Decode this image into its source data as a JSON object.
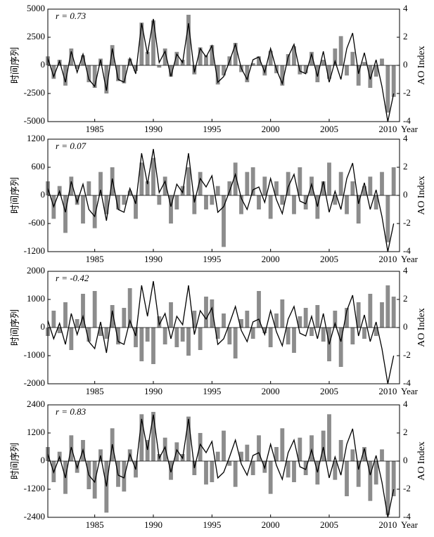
{
  "chart_data": [
    {
      "type": "bar",
      "annotation": "r = 0.73",
      "ylabel": "时间序列",
      "y2label": "AO Index",
      "xlabel": "Year",
      "xlim": [
        1981,
        2011
      ],
      "xticks": [
        1985,
        1990,
        1995,
        2000,
        2005,
        2010
      ],
      "ylim": [
        -5000,
        5000
      ],
      "yticks": [
        -5000,
        -2500,
        0,
        2500,
        5000
      ],
      "y2lim": [
        -4,
        4
      ],
      "y2ticks": [
        -4,
        -2,
        0,
        2,
        4
      ],
      "x": [
        1981,
        1981.5,
        1982,
        1982.5,
        1983,
        1983.5,
        1984,
        1984.5,
        1985,
        1985.5,
        1986,
        1986.5,
        1987,
        1987.5,
        1988,
        1988.5,
        1989,
        1989.5,
        1990,
        1990.5,
        1991,
        1991.5,
        1992,
        1992.5,
        1993,
        1993.5,
        1994,
        1994.5,
        1995,
        1995.5,
        1996,
        1996.5,
        1997,
        1997.5,
        1998,
        1998.5,
        1999,
        1999.5,
        2000,
        2000.5,
        2001,
        2001.5,
        2002,
        2002.5,
        2003,
        2003.5,
        2004,
        2004.5,
        2005,
        2005.5,
        2006,
        2006.5,
        2007,
        2007.5,
        2008,
        2008.5,
        2009,
        2009.5,
        2010,
        2010.5
      ],
      "series": [
        {
          "color": "#8c8c8c",
          "values": [
            800,
            -1200,
            500,
            -1800,
            1500,
            -300,
            900,
            -1500,
            -2000,
            600,
            -2500,
            1800,
            -1400,
            -1600,
            600,
            -500,
            3800,
            1200,
            4000,
            -200,
            1500,
            -1000,
            1200,
            500,
            4500,
            -800,
            1600,
            900,
            1800,
            -1700,
            -900,
            800,
            2000,
            -600,
            -1500,
            200,
            800,
            -900,
            1300,
            -700,
            -1800,
            1000,
            1700,
            -800,
            -700,
            1200,
            -1500,
            500,
            -1200,
            1500,
            2600,
            -900,
            1200,
            -1800,
            300,
            -2000,
            -1000,
            600,
            -4200,
            -2800
          ]
        },
        {
          "color": "#000000",
          "axis": "y2",
          "values": [
            0.5,
            -0.8,
            0.3,
            -1.2,
            1.0,
            -0.5,
            0.8,
            -1.0,
            -1.5,
            0.4,
            -1.8,
            1.2,
            -1.0,
            -1.2,
            0.5,
            -0.6,
            3.0,
            0.8,
            3.3,
            0.2,
            1.0,
            -0.8,
            0.8,
            0.2,
            3.0,
            -0.5,
            1.2,
            0.6,
            1.4,
            -1.2,
            -0.8,
            0.3,
            1.5,
            -0.2,
            -1.0,
            0.4,
            0.6,
            -0.5,
            1.2,
            -0.3,
            -1.3,
            0.6,
            1.5,
            -0.4,
            -0.6,
            0.8,
            -0.8,
            1.0,
            -1.2,
            0.3,
            -1.0,
            1.2,
            2.3,
            -0.6,
            0.9,
            -1.0,
            0.4,
            -1.5,
            -4.0,
            -2.0
          ]
        }
      ]
    },
    {
      "type": "bar",
      "annotation": "r = 0.07",
      "ylabel": "时间序列",
      "y2label": "AO Index",
      "xlabel": "Year",
      "xlim": [
        1981,
        2011
      ],
      "xticks": [
        1985,
        1990,
        1995,
        2000,
        2005,
        2010
      ],
      "ylim": [
        -1200,
        1200
      ],
      "yticks": [
        -1200,
        -600,
        0,
        600,
        1200
      ],
      "y2lim": [
        -4,
        4
      ],
      "y2ticks": [
        -4,
        -2,
        0,
        2,
        4
      ],
      "x": [
        1981,
        1981.5,
        1982,
        1982.5,
        1983,
        1983.5,
        1984,
        1984.5,
        1985,
        1985.5,
        1986,
        1986.5,
        1987,
        1987.5,
        1988,
        1988.5,
        1989,
        1989.5,
        1990,
        1990.5,
        1991,
        1991.5,
        1992,
        1992.5,
        1993,
        1993.5,
        1994,
        1994.5,
        1995,
        1995.5,
        1996,
        1996.5,
        1997,
        1997.5,
        1998,
        1998.5,
        1999,
        1999.5,
        2000,
        2000.5,
        2001,
        2001.5,
        2002,
        2002.5,
        2003,
        2003.5,
        2004,
        2004.5,
        2005,
        2005.5,
        2006,
        2006.5,
        2007,
        2007.5,
        2008,
        2008.5,
        2009,
        2009.5,
        2010,
        2010.5
      ],
      "series": [
        {
          "color": "#8c8c8c",
          "values": [
            300,
            -500,
            200,
            -800,
            400,
            -200,
            -600,
            300,
            -700,
            500,
            -400,
            600,
            -300,
            -200,
            100,
            -500,
            700,
            300,
            800,
            -200,
            400,
            -600,
            -300,
            200,
            600,
            -400,
            500,
            -300,
            -200,
            200,
            -1100,
            300,
            700,
            -400,
            500,
            600,
            -300,
            400,
            -500,
            300,
            -200,
            500,
            -400,
            600,
            -300,
            400,
            -500,
            300,
            700,
            -200,
            500,
            -400,
            300,
            -600,
            200,
            400,
            -300,
            500,
            -1000,
            600
          ]
        },
        {
          "color": "#000000",
          "axis": "y2",
          "values": [
            0.5,
            -0.8,
            0.3,
            -1.2,
            1.0,
            -0.5,
            0.8,
            -1.0,
            -1.5,
            0.4,
            -1.8,
            1.2,
            -1.0,
            -1.2,
            0.5,
            -0.6,
            3.0,
            0.8,
            3.3,
            0.2,
            1.0,
            -0.8,
            0.8,
            0.2,
            3.0,
            -0.5,
            1.2,
            0.6,
            1.4,
            -1.2,
            -0.8,
            0.3,
            1.5,
            -0.2,
            -1.0,
            0.4,
            0.6,
            -0.5,
            1.2,
            -0.3,
            -1.3,
            0.6,
            1.5,
            -0.4,
            -0.6,
            0.8,
            -0.8,
            1.0,
            -1.2,
            0.3,
            -1.0,
            1.2,
            2.3,
            -0.6,
            0.9,
            -1.0,
            0.4,
            -1.5,
            -4.0,
            -2.0
          ]
        }
      ]
    },
    {
      "type": "bar",
      "annotation": "r = -0.42",
      "ylabel": "时间序列",
      "y2label": "AO Index",
      "xlabel": "Year",
      "xlim": [
        1981,
        2011
      ],
      "xticks": [
        1985,
        1990,
        1995,
        2000,
        2005,
        2010
      ],
      "ylim": [
        -2000,
        2000
      ],
      "yticks": [
        -2000,
        -1000,
        0,
        1000,
        2000
      ],
      "y2lim": [
        -4,
        4
      ],
      "y2ticks": [
        -4,
        -2,
        0,
        2,
        4
      ],
      "x": [
        1981,
        1981.5,
        1982,
        1982.5,
        1983,
        1983.5,
        1984,
        1984.5,
        1985,
        1985.5,
        1986,
        1986.5,
        1987,
        1987.5,
        1988,
        1988.5,
        1989,
        1989.5,
        1990,
        1990.5,
        1991,
        1991.5,
        1992,
        1992.5,
        1993,
        1993.5,
        1994,
        1994.5,
        1995,
        1995.5,
        1996,
        1996.5,
        1997,
        1997.5,
        1998,
        1998.5,
        1999,
        1999.5,
        2000,
        2000.5,
        2001,
        2001.5,
        2002,
        2002.5,
        2003,
        2003.5,
        2004,
        2004.5,
        2005,
        2005.5,
        2006,
        2006.5,
        2007,
        2007.5,
        2008,
        2008.5,
        2009,
        2009.5,
        2010,
        2010.5
      ],
      "series": [
        {
          "color": "#8c8c8c",
          "values": [
            -300,
            600,
            -200,
            900,
            -800,
            300,
            1200,
            -500,
            1300,
            -300,
            -400,
            800,
            -600,
            700,
            1400,
            -700,
            -1200,
            -500,
            -1300,
            400,
            -600,
            900,
            -700,
            -500,
            -1000,
            600,
            -800,
            1100,
            1000,
            -400,
            500,
            -600,
            -1100,
            300,
            600,
            -400,
            1300,
            -200,
            -700,
            500,
            1000,
            -600,
            -900,
            400,
            700,
            -300,
            800,
            -500,
            -1200,
            600,
            -1400,
            700,
            -600,
            900,
            -400,
            1200,
            -300,
            900,
            1500,
            1100
          ]
        },
        {
          "color": "#000000",
          "axis": "y2",
          "values": [
            0.5,
            -0.8,
            0.3,
            -1.2,
            1.0,
            -0.5,
            0.8,
            -1.0,
            -1.5,
            0.4,
            -1.8,
            1.2,
            -1.0,
            -1.2,
            0.5,
            -0.6,
            3.0,
            0.8,
            3.3,
            0.2,
            1.0,
            -0.8,
            0.8,
            0.2,
            3.0,
            -0.5,
            1.2,
            0.6,
            1.4,
            -1.2,
            -0.8,
            0.3,
            1.5,
            -0.2,
            -1.0,
            0.4,
            0.6,
            -0.5,
            1.2,
            -0.3,
            -1.3,
            0.6,
            1.5,
            -0.4,
            -0.6,
            0.8,
            -0.8,
            1.0,
            -1.2,
            0.3,
            -1.0,
            1.2,
            2.3,
            -0.6,
            0.9,
            -1.0,
            0.4,
            -1.5,
            -4.0,
            -2.0
          ]
        }
      ]
    },
    {
      "type": "bar",
      "annotation": "r = 0.83",
      "ylabel": "时间序列",
      "y2label": "AO Index",
      "xlabel": "Year",
      "xlim": [
        1981,
        2011
      ],
      "xticks": [
        1985,
        1990,
        1995,
        2000,
        2005,
        2010
      ],
      "ylim": [
        -2400,
        2400
      ],
      "yticks": [
        -2400,
        -1200,
        0,
        1200,
        2400
      ],
      "y2lim": [
        -4,
        4
      ],
      "y2ticks": [
        -4,
        -2,
        0,
        2,
        4
      ],
      "x": [
        1981,
        1981.5,
        1982,
        1982.5,
        1983,
        1983.5,
        1984,
        1984.5,
        1985,
        1985.5,
        1986,
        1986.5,
        1987,
        1987.5,
        1988,
        1988.5,
        1989,
        1989.5,
        1990,
        1990.5,
        1991,
        1991.5,
        1992,
        1992.5,
        1993,
        1993.5,
        1994,
        1994.5,
        1995,
        1995.5,
        1996,
        1996.5,
        1997,
        1997.5,
        1998,
        1998.5,
        1999,
        1999.5,
        2000,
        2000.5,
        2001,
        2001.5,
        2002,
        2002.5,
        2003,
        2003.5,
        2004,
        2004.5,
        2005,
        2005.5,
        2006,
        2006.5,
        2007,
        2007.5,
        2008,
        2008.5,
        2009,
        2009.5,
        2010,
        2010.5
      ],
      "series": [
        {
          "color": "#8c8c8c",
          "values": [
            600,
            -900,
            400,
            -1400,
            1100,
            -500,
            900,
            -1200,
            -1600,
            500,
            -2200,
            1400,
            -1100,
            -1300,
            500,
            -700,
            2000,
            900,
            2100,
            300,
            1000,
            -800,
            800,
            300,
            1900,
            -600,
            1200,
            -1000,
            -900,
            400,
            1300,
            -200,
            -1100,
            400,
            700,
            -600,
            1100,
            -500,
            -1400,
            600,
            1400,
            -700,
            -900,
            1000,
            -600,
            1100,
            -1000,
            1300,
            2000,
            -800,
            900,
            -1500,
            500,
            -1100,
            600,
            -1700,
            -1000,
            500,
            -2300,
            -1500
          ]
        },
        {
          "color": "#000000",
          "axis": "y2",
          "values": [
            0.5,
            -0.8,
            0.3,
            -1.2,
            1.0,
            -0.5,
            0.8,
            -1.0,
            -1.5,
            0.4,
            -1.8,
            1.2,
            -1.0,
            -1.2,
            0.5,
            -0.6,
            3.0,
            0.8,
            3.3,
            0.2,
            1.0,
            -0.8,
            0.8,
            0.2,
            3.0,
            -0.5,
            1.2,
            0.6,
            1.4,
            -1.2,
            -0.8,
            0.3,
            1.5,
            -0.2,
            -1.0,
            0.4,
            0.6,
            -0.5,
            1.2,
            -0.3,
            -1.3,
            0.6,
            1.5,
            -0.4,
            -0.6,
            0.8,
            -0.8,
            1.0,
            -1.2,
            0.3,
            -1.0,
            1.2,
            2.3,
            -0.6,
            0.9,
            -1.0,
            0.4,
            -1.5,
            -4.0,
            -2.0
          ]
        }
      ]
    }
  ]
}
